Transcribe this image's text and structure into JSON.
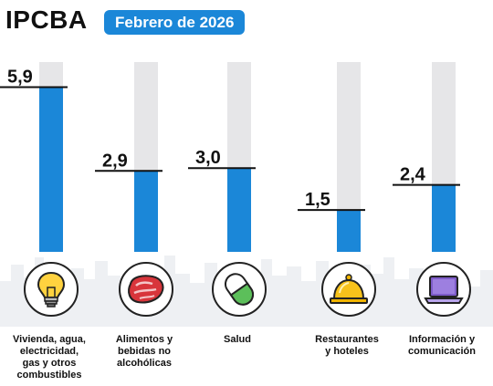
{
  "header": {
    "title": "IPCBA",
    "period": "Febrero de 2026"
  },
  "colors": {
    "bar": "#1b87d8",
    "track": "#e6e6e8",
    "badge": "#1b87d8"
  },
  "chart_data": {
    "type": "bar",
    "categories": [
      "Vivienda, agua, electricidad, gas y otros combustibles",
      "Alimentos y bebidas no alcohólicas",
      "Salud",
      "Restaurantes y hoteles",
      "Información y comunicación"
    ],
    "values": [
      5.9,
      2.9,
      3.0,
      1.5,
      2.4
    ],
    "value_labels": [
      "5,9",
      "2,9",
      "3,0",
      "1,5",
      "2,4"
    ],
    "ylim": [
      0,
      6.8
    ],
    "grid": false
  },
  "categories": [
    {
      "label_lines": [
        "Vivienda, agua,",
        "electricidad,",
        "gas y otros",
        "combustibles"
      ],
      "icon": "lightbulb-icon"
    },
    {
      "label_lines": [
        "Alimentos y",
        "bebidas no",
        "alcohólicas"
      ],
      "icon": "steak-icon"
    },
    {
      "label_lines": [
        "Salud"
      ],
      "icon": "pill-icon"
    },
    {
      "label_lines": [
        "Restaurantes",
        "y hoteles"
      ],
      "icon": "service-bell-icon"
    },
    {
      "label_lines": [
        "Información y",
        "comunicación"
      ],
      "icon": "laptop-icon"
    }
  ]
}
